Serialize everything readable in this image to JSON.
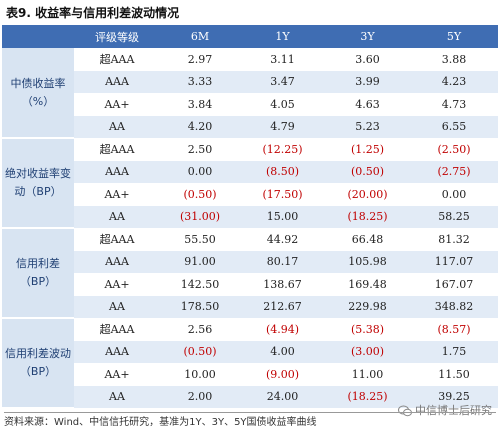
{
  "title": "表9. 收益率与信用利差波动情况",
  "headers": [
    "评级等级",
    "6M",
    "1Y",
    "3Y",
    "5Y"
  ],
  "groups": [
    {
      "name": "中债收益率（%）",
      "rows": [
        {
          "grade": "超AAA",
          "values": [
            "2.97",
            "3.11",
            "3.60",
            "3.88"
          ]
        },
        {
          "grade": "AAA",
          "values": [
            "3.33",
            "3.47",
            "3.99",
            "4.23"
          ]
        },
        {
          "grade": "AA+",
          "values": [
            "3.84",
            "4.05",
            "4.63",
            "4.73"
          ]
        },
        {
          "grade": "AA",
          "values": [
            "4.20",
            "4.79",
            "5.23",
            "6.55"
          ]
        }
      ]
    },
    {
      "name": "绝对收益率变动（BP）",
      "rows": [
        {
          "grade": "超AAA",
          "values": [
            "2.50",
            "(12.25)",
            "(1.25)",
            "(2.50)"
          ]
        },
        {
          "grade": "AAA",
          "values": [
            "0.00",
            "(8.50)",
            "(0.50)",
            "(2.75)"
          ]
        },
        {
          "grade": "AA+",
          "values": [
            "(0.50)",
            "(17.50)",
            "(20.00)",
            "0.00"
          ]
        },
        {
          "grade": "AA",
          "values": [
            "(31.00)",
            "15.00",
            "(18.25)",
            "58.25"
          ]
        }
      ]
    },
    {
      "name": "信用利差（BP）",
      "rows": [
        {
          "grade": "超AAA",
          "values": [
            "55.50",
            "44.92",
            "66.48",
            "81.32"
          ]
        },
        {
          "grade": "AAA",
          "values": [
            "91.00",
            "80.17",
            "105.98",
            "117.07"
          ]
        },
        {
          "grade": "AA+",
          "values": [
            "142.50",
            "138.67",
            "169.48",
            "167.07"
          ]
        },
        {
          "grade": "AA",
          "values": [
            "178.50",
            "212.67",
            "229.98",
            "348.82"
          ]
        }
      ]
    },
    {
      "name": "信用利差波动（BP）",
      "rows": [
        {
          "grade": "超AAA",
          "values": [
            "2.56",
            "(4.94)",
            "(5.38)",
            "(8.57)"
          ]
        },
        {
          "grade": "AAA",
          "values": [
            "(0.50)",
            "4.00",
            "(3.00)",
            "1.75"
          ]
        },
        {
          "grade": "AA+",
          "values": [
            "10.00",
            "(9.00)",
            "11.00",
            "11.50"
          ]
        },
        {
          "grade": "AA",
          "values": [
            "2.00",
            "24.00",
            "(18.25)",
            "39.25"
          ]
        }
      ]
    }
  ],
  "footer": "资料来源：Wind、中信信托研究，基准为1Y、3Y、5Y国债收益率曲线",
  "watermark": "中信博士后研究",
  "colors": {
    "header": "#3f6db3",
    "negative": "#c00000",
    "category": "#d8e4f2"
  }
}
